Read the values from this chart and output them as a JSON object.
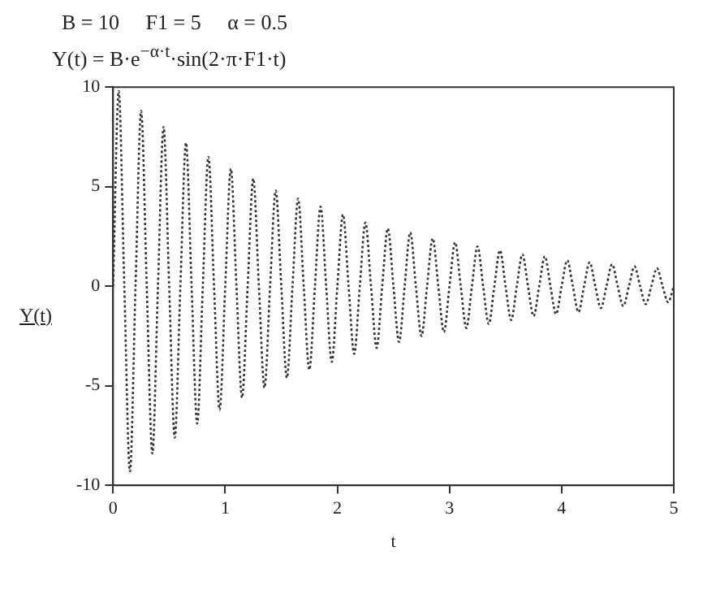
{
  "chart_data": {
    "type": "line",
    "title": "B = 10     F1 = 5     α = 0.5",
    "subtitle": "Y(t) = B·e$^{−α·t}$·sin(2·π·F1·t)",
    "xlabel": "t",
    "ylabel": "Y(t)",
    "x": [
      0,
      0.05,
      0.1,
      0.15,
      0.2,
      0.25,
      0.3,
      0.35,
      0.4,
      0.45,
      0.5,
      0.55,
      0.6,
      0.65,
      0.7,
      0.75,
      0.8,
      0.85,
      0.9,
      0.95,
      1,
      1.05,
      1.1,
      1.15,
      1.2,
      1.25,
      1.3,
      1.35,
      1.4,
      1.45,
      1.5,
      1.55,
      1.6,
      1.65,
      1.7,
      1.75,
      1.8,
      1.85,
      1.9,
      1.95,
      2,
      2.05,
      2.1,
      2.15,
      2.2,
      2.25,
      2.3,
      2.35,
      2.4,
      2.45,
      2.5,
      2.55,
      2.6,
      2.65,
      2.7,
      2.75,
      2.8,
      2.85,
      2.9,
      2.95,
      3,
      3.05,
      3.1,
      3.15,
      3.2,
      3.25,
      3.3,
      3.35,
      3.4,
      3.45,
      3.5,
      3.55,
      3.6,
      3.65,
      3.7,
      3.75,
      3.8,
      3.85,
      3.9,
      3.95,
      4,
      4.05,
      4.1,
      4.15,
      4.2,
      4.25,
      4.3,
      4.35,
      4.4,
      4.45,
      4.5,
      4.55,
      4.6,
      4.65,
      4.7,
      4.75,
      4.8,
      4.85,
      4.9,
      4.95,
      5
    ],
    "series": [
      {
        "color": "#333333",
        "values": [
          0,
          9.8,
          0,
          -9.3,
          0,
          8.8,
          0,
          -8.4,
          0,
          8.0,
          0,
          -7.6,
          0,
          7.2,
          0,
          -6.9,
          0,
          6.5,
          0,
          -6.2,
          0,
          5.9,
          0,
          -5.6,
          0,
          5.4,
          0,
          -5.1,
          0,
          4.8,
          0,
          -4.6,
          0,
          4.4,
          0,
          -4.2,
          0,
          4.0,
          0,
          -3.8,
          0,
          3.6,
          0,
          -3.4,
          0,
          3.2,
          0,
          -3.1,
          0,
          2.9,
          0,
          -2.8,
          0,
          2.7,
          0,
          -2.5,
          0,
          2.4,
          0,
          -2.3,
          0,
          2.2,
          0,
          -2.1,
          0,
          2.0,
          0,
          -1.9,
          0,
          1.8,
          0,
          -1.7,
          0,
          1.6,
          0,
          -1.5,
          0,
          1.5,
          0,
          -1.4,
          0,
          1.3,
          0,
          -1.3,
          0,
          1.2,
          0,
          -1.1,
          0,
          1.1,
          0,
          -1.0,
          0,
          1.0,
          0,
          -0.9,
          0,
          0.9,
          0,
          -0.8,
          0
        ]
      }
    ],
    "xlim": [
      0,
      5
    ],
    "xticks": [
      0,
      1,
      2,
      3,
      4,
      5
    ],
    "ylim": [
      -10,
      10
    ],
    "yticks": [
      -10,
      -5,
      0,
      5,
      10
    ],
    "grid": false,
    "legend": false,
    "marker": "none",
    "line_style": "dotted"
  }
}
